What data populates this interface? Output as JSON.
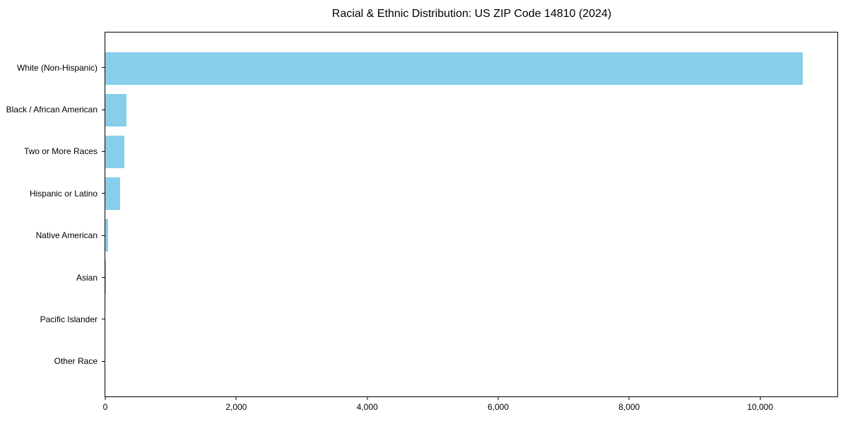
{
  "page": {
    "background_color": "#ffffff",
    "text_color": "#000000"
  },
  "chart_data": {
    "type": "bar",
    "orientation": "horizontal",
    "title": "Racial & Ethnic Distribution: US ZIP Code 14810 (2024)",
    "xlabel": "",
    "ylabel": "",
    "categories": [
      "White (Non-Hispanic)",
      "Black / African American",
      "Two or More Races",
      "Hispanic or Latino",
      "Native American",
      "Asian",
      "Pacific Islander",
      "Other Race"
    ],
    "values": [
      10650,
      320,
      290,
      230,
      40,
      10,
      0,
      0
    ],
    "bar_color": "#87CEEB",
    "xlim": [
      0,
      11180
    ],
    "xticks": [
      {
        "value": 0,
        "label": "0"
      },
      {
        "value": 2000,
        "label": "2,000"
      },
      {
        "value": 4000,
        "label": "4,000"
      },
      {
        "value": 6000,
        "label": "6,000"
      },
      {
        "value": 8000,
        "label": "8,000"
      },
      {
        "value": 10000,
        "label": "10,000"
      }
    ],
    "grid": false,
    "legend": "none"
  }
}
